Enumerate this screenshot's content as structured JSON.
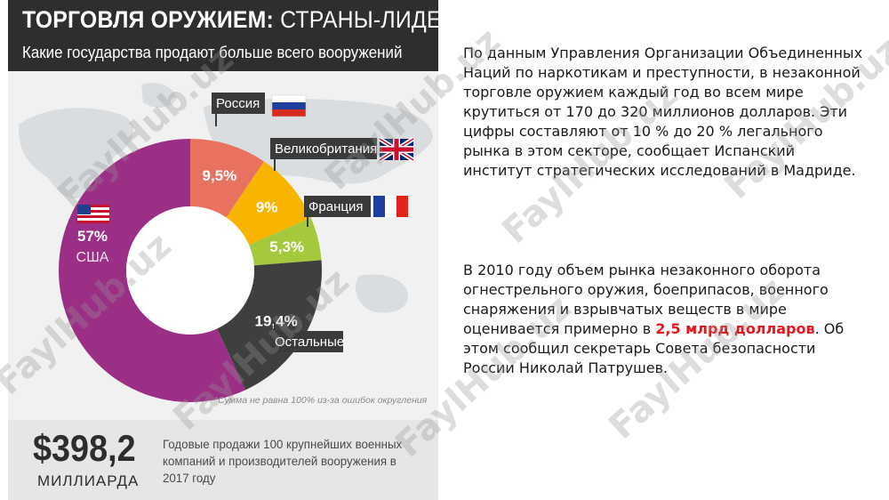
{
  "title_bold": "ТОРГОВЛЯ ОРУЖИЕМ:",
  "title_rest": " СТРАНЫ-ЛИДЕРЫ",
  "subtitle": "Какие государства продают больше всего вооружений",
  "chart_data": {
    "type": "pie",
    "donut": true,
    "categories": [
      "США",
      "Россия",
      "Великобритания",
      "Франция",
      "Остальные"
    ],
    "values": [
      57,
      9.5,
      9,
      5.3,
      19.4
    ],
    "value_labels": [
      "57%",
      "9,5%",
      "9%",
      "5,3%",
      "19,4%"
    ],
    "colors": [
      "#9b2f86",
      "#e8725f",
      "#f7b500",
      "#a4c93c",
      "#3f3f3f"
    ],
    "note": "*Сумма не равна 100% из-за ошибок округления"
  },
  "big_number": "$398,2",
  "big_unit": "МИЛЛИАРДА",
  "bottom_text": "Годовые продажи 100 крупнейших военных компаний и производителей вооружения в 2017 году",
  "paragraph1": "По данным Управления Организации Объединенных Наций по наркотикам и преступности, в незаконной торговле оружием каждый год во всем мире крутиться от 170 до 320 миллионов долларов. Эти цифры составляют от 10 % до 20 % легального рынка в этом секторе, сообщает Испанский институт стратегических исследований в Мадриде.",
  "paragraph2_before": "В 2010 году объем рынка незаконного оборота огнестрельного оружия, боеприпасов, военного снаряжения и взрывчатых веществ в мире оценивается примерно в ",
  "paragraph2_highlight": "2,5 млрд долларов",
  "paragraph2_after": ". Об этом сообщил секретарь Совета безопасности России Николай Патрушев.",
  "watermark_text": "FaylHub.uz",
  "icons": [
    "flag-russia-icon",
    "flag-uk-icon",
    "flag-france-icon",
    "flag-usa-icon",
    "world-map"
  ]
}
